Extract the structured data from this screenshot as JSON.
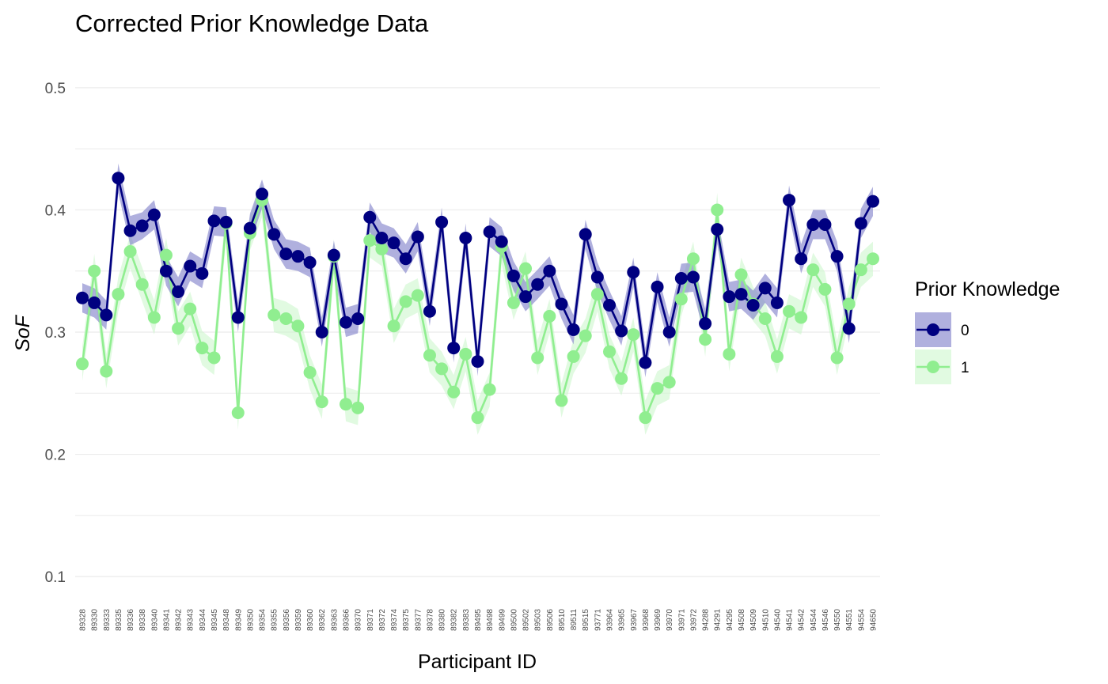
{
  "chart_data": {
    "type": "line",
    "title": "Corrected Prior Knowledge Data",
    "xlabel": "Participant ID",
    "ylabel": "SoF",
    "ylim": [
      0.08,
      0.52
    ],
    "yticks": [
      "0.1",
      "0.2",
      "0.3",
      "0.4",
      "0.5"
    ],
    "grid": true,
    "legend": {
      "title": "Prior Knowledge",
      "position": "right"
    },
    "colors": {
      "0": "#000080",
      "1": "#90EE90",
      "ribbon0": "#7B7BC8",
      "ribbon1": "#C8F5C8"
    },
    "categories": [
      "89328",
      "89330",
      "89333",
      "89335",
      "89336",
      "89338",
      "89340",
      "89341",
      "89342",
      "89343",
      "89344",
      "89345",
      "89348",
      "89349",
      "89350",
      "89354",
      "89355",
      "89356",
      "89359",
      "89360",
      "89362",
      "89363",
      "89366",
      "89370",
      "89371",
      "89372",
      "89374",
      "89375",
      "89377",
      "89378",
      "89380",
      "89382",
      "89383",
      "89495",
      "89498",
      "89499",
      "89500",
      "89502",
      "89503",
      "89506",
      "89510",
      "89511",
      "89515",
      "93771",
      "93964",
      "93965",
      "93967",
      "93968",
      "93969",
      "93970",
      "93971",
      "93972",
      "94288",
      "94291",
      "94295",
      "94508",
      "94509",
      "94510",
      "94540",
      "94541",
      "94542",
      "94544",
      "94546",
      "94550",
      "94551",
      "94554",
      "94650"
    ],
    "series": [
      {
        "name": "0",
        "values": [
          0.328,
          0.324,
          0.314,
          0.426,
          0.383,
          0.387,
          0.396,
          0.35,
          0.333,
          0.354,
          0.348,
          0.391,
          0.39,
          0.312,
          0.385,
          0.413,
          0.38,
          0.364,
          0.362,
          0.357,
          0.3,
          0.363,
          0.308,
          0.311,
          0.394,
          0.377,
          0.373,
          0.36,
          0.378,
          0.317,
          0.39,
          0.287,
          0.377,
          0.276,
          0.382,
          0.374,
          0.346,
          0.329,
          0.339,
          0.35,
          0.323,
          0.302,
          0.38,
          0.345,
          0.322,
          0.301,
          0.349,
          0.275,
          0.337,
          0.3,
          0.344,
          0.345,
          0.307,
          0.384,
          0.329,
          0.331,
          0.322,
          0.336,
          0.324,
          0.408,
          0.36,
          0.388,
          0.388,
          0.362,
          0.303,
          0.389,
          0.407
        ],
        "upper": [
          0.34,
          0.336,
          0.326,
          0.438,
          0.395,
          0.398,
          0.408,
          0.362,
          0.345,
          0.366,
          0.36,
          0.403,
          0.402,
          0.324,
          0.397,
          0.425,
          0.392,
          0.376,
          0.374,
          0.369,
          0.312,
          0.375,
          0.32,
          0.323,
          0.406,
          0.389,
          0.385,
          0.372,
          0.39,
          0.329,
          0.402,
          0.299,
          0.389,
          0.288,
          0.394,
          0.386,
          0.358,
          0.341,
          0.351,
          0.362,
          0.335,
          0.314,
          0.392,
          0.357,
          0.334,
          0.313,
          0.361,
          0.287,
          0.349,
          0.312,
          0.356,
          0.357,
          0.319,
          0.396,
          0.341,
          0.343,
          0.334,
          0.348,
          0.336,
          0.42,
          0.372,
          0.4,
          0.4,
          0.374,
          0.315,
          0.401,
          0.419
        ],
        "lower": [
          0.316,
          0.312,
          0.302,
          0.414,
          0.371,
          0.376,
          0.384,
          0.338,
          0.321,
          0.342,
          0.336,
          0.379,
          0.378,
          0.3,
          0.373,
          0.401,
          0.368,
          0.352,
          0.35,
          0.345,
          0.288,
          0.351,
          0.296,
          0.299,
          0.382,
          0.365,
          0.361,
          0.348,
          0.366,
          0.305,
          0.378,
          0.275,
          0.365,
          0.264,
          0.37,
          0.362,
          0.334,
          0.317,
          0.327,
          0.338,
          0.311,
          0.29,
          0.368,
          0.333,
          0.31,
          0.289,
          0.337,
          0.263,
          0.325,
          0.288,
          0.332,
          0.333,
          0.295,
          0.372,
          0.317,
          0.319,
          0.31,
          0.324,
          0.312,
          0.396,
          0.348,
          0.376,
          0.376,
          0.35,
          0.291,
          0.377,
          0.395
        ]
      },
      {
        "name": "1",
        "values": [
          0.274,
          0.35,
          0.268,
          0.331,
          0.366,
          0.339,
          0.312,
          0.363,
          0.303,
          0.319,
          0.287,
          0.279,
          0.389,
          0.234,
          0.381,
          0.408,
          0.314,
          0.311,
          0.305,
          0.267,
          0.243,
          0.362,
          0.241,
          0.238,
          0.375,
          0.368,
          0.305,
          0.325,
          0.33,
          0.281,
          0.27,
          0.251,
          0.282,
          0.23,
          0.253,
          0.37,
          0.324,
          0.352,
          0.279,
          0.313,
          0.244,
          0.28,
          0.297,
          0.331,
          0.284,
          0.262,
          0.298,
          0.23,
          0.254,
          0.259,
          0.327,
          0.36,
          0.294,
          0.4,
          0.282,
          0.347,
          0.323,
          0.311,
          0.28,
          0.317,
          0.312,
          0.351,
          0.335,
          0.279,
          0.323,
          0.351,
          0.36
        ],
        "upper": [
          0.288,
          0.364,
          0.282,
          0.345,
          0.38,
          0.353,
          0.326,
          0.377,
          0.317,
          0.333,
          0.301,
          0.293,
          0.403,
          0.248,
          0.395,
          0.422,
          0.328,
          0.325,
          0.319,
          0.281,
          0.257,
          0.376,
          0.255,
          0.252,
          0.389,
          0.382,
          0.319,
          0.339,
          0.344,
          0.295,
          0.284,
          0.265,
          0.296,
          0.244,
          0.267,
          0.384,
          0.338,
          0.366,
          0.293,
          0.327,
          0.258,
          0.294,
          0.311,
          0.345,
          0.298,
          0.276,
          0.312,
          0.244,
          0.268,
          0.273,
          0.341,
          0.374,
          0.308,
          0.414,
          0.296,
          0.361,
          0.337,
          0.325,
          0.294,
          0.331,
          0.326,
          0.365,
          0.349,
          0.293,
          0.337,
          0.365,
          0.374
        ],
        "lower": [
          0.26,
          0.336,
          0.254,
          0.317,
          0.352,
          0.325,
          0.298,
          0.349,
          0.289,
          0.305,
          0.273,
          0.265,
          0.375,
          0.22,
          0.367,
          0.394,
          0.3,
          0.297,
          0.291,
          0.253,
          0.229,
          0.348,
          0.227,
          0.224,
          0.361,
          0.354,
          0.291,
          0.311,
          0.316,
          0.267,
          0.256,
          0.237,
          0.268,
          0.216,
          0.239,
          0.356,
          0.31,
          0.338,
          0.265,
          0.299,
          0.23,
          0.266,
          0.283,
          0.317,
          0.27,
          0.248,
          0.284,
          0.216,
          0.24,
          0.245,
          0.313,
          0.346,
          0.28,
          0.386,
          0.268,
          0.333,
          0.309,
          0.297,
          0.266,
          0.303,
          0.298,
          0.337,
          0.321,
          0.265,
          0.309,
          0.337,
          0.346
        ]
      }
    ]
  }
}
